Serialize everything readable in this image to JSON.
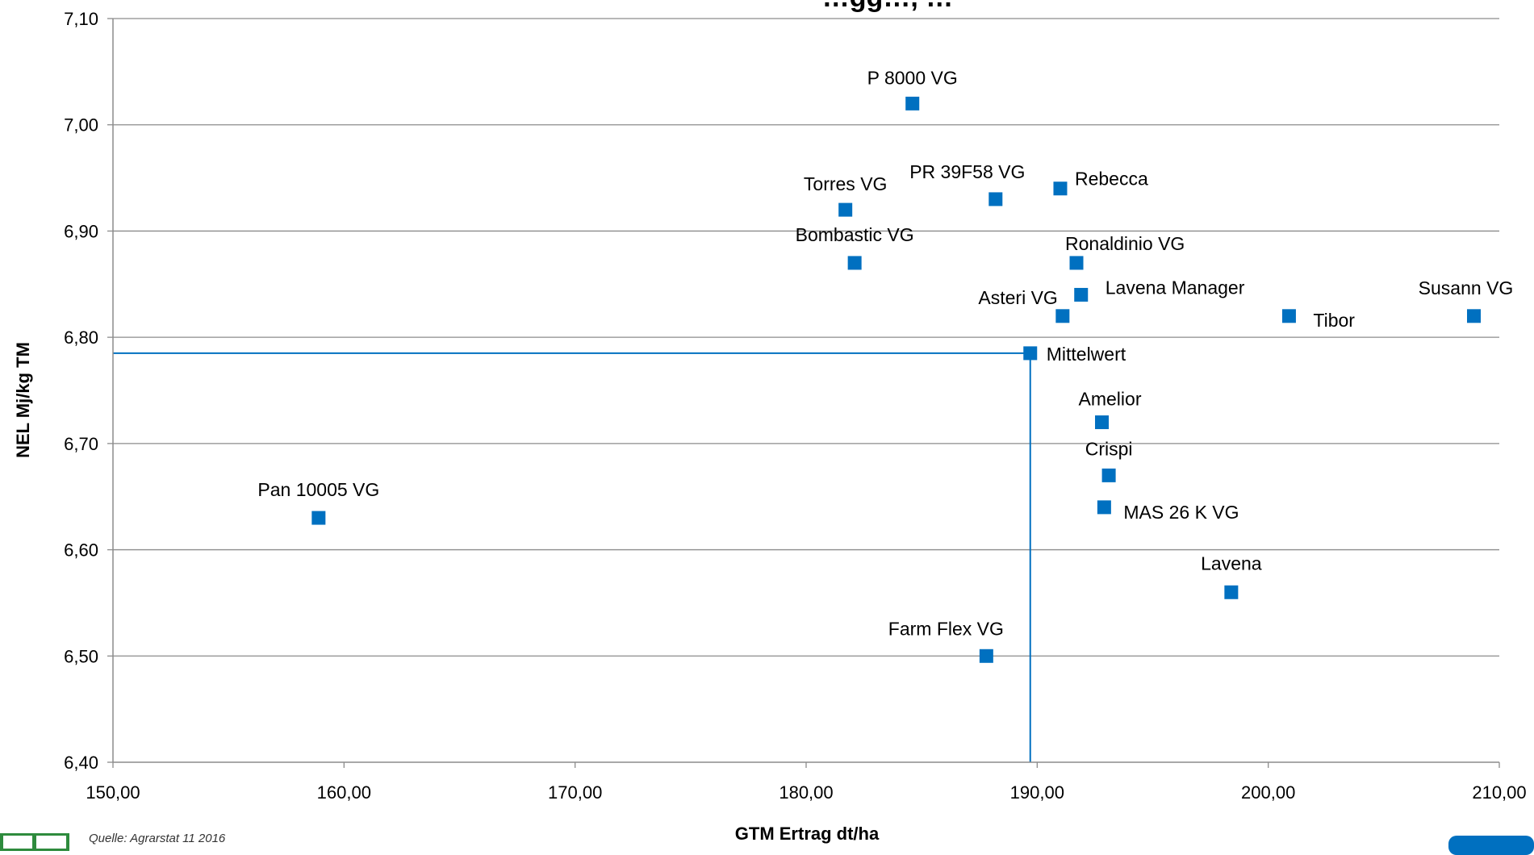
{
  "chart_data": {
    "type": "scatter",
    "title": "…gg…, …",
    "xlabel": "GTM Ertrag dt/ha",
    "ylabel": "NEL Mj/kg TM",
    "xlim": [
      150,
      210
    ],
    "ylim": [
      6.4,
      7.1
    ],
    "x_ticks": [
      "150,00",
      "160,00",
      "170,00",
      "180,00",
      "190,00",
      "200,00",
      "210,00"
    ],
    "y_ticks": [
      "6,40",
      "6,50",
      "6,60",
      "6,70",
      "6,80",
      "6,90",
      "7,00",
      "7,10"
    ],
    "grid": "horizontal",
    "marker_color": "#0070c0",
    "reference_line_color": "#0070c0",
    "points": [
      {
        "label": "P 8000 VG",
        "x": 184.6,
        "y": 7.02
      },
      {
        "label": "Torres VG",
        "x": 181.7,
        "y": 6.92
      },
      {
        "label": "PR 39F58 VG",
        "x": 188.2,
        "y": 6.93
      },
      {
        "label": "Rebecca",
        "x": 191.0,
        "y": 6.94
      },
      {
        "label": "Bombastic VG",
        "x": 182.1,
        "y": 6.87
      },
      {
        "label": "Ronaldinio VG",
        "x": 191.7,
        "y": 6.87
      },
      {
        "label": "Lavena Manager",
        "x": 191.9,
        "y": 6.84
      },
      {
        "label": "Asteri VG",
        "x": 191.1,
        "y": 6.82
      },
      {
        "label": "Tibor",
        "x": 200.9,
        "y": 6.82
      },
      {
        "label": "Susann VG",
        "x": 208.9,
        "y": 6.82
      },
      {
        "label": "Mittelwert",
        "x": 189.7,
        "y": 6.785
      },
      {
        "label": "Amelior",
        "x": 192.8,
        "y": 6.72
      },
      {
        "label": "Crispi",
        "x": 193.1,
        "y": 6.67
      },
      {
        "label": "MAS 26 K VG",
        "x": 192.9,
        "y": 6.64
      },
      {
        "label": "Pan 10005 VG",
        "x": 158.9,
        "y": 6.63
      },
      {
        "label": "Lavena",
        "x": 198.4,
        "y": 6.56
      },
      {
        "label": "Farm Flex VG",
        "x": 187.8,
        "y": 6.5
      }
    ],
    "reference": {
      "x": 189.7,
      "y": 6.785
    }
  },
  "footer": {
    "source": "Quelle: Agrarstat 11 2016"
  }
}
